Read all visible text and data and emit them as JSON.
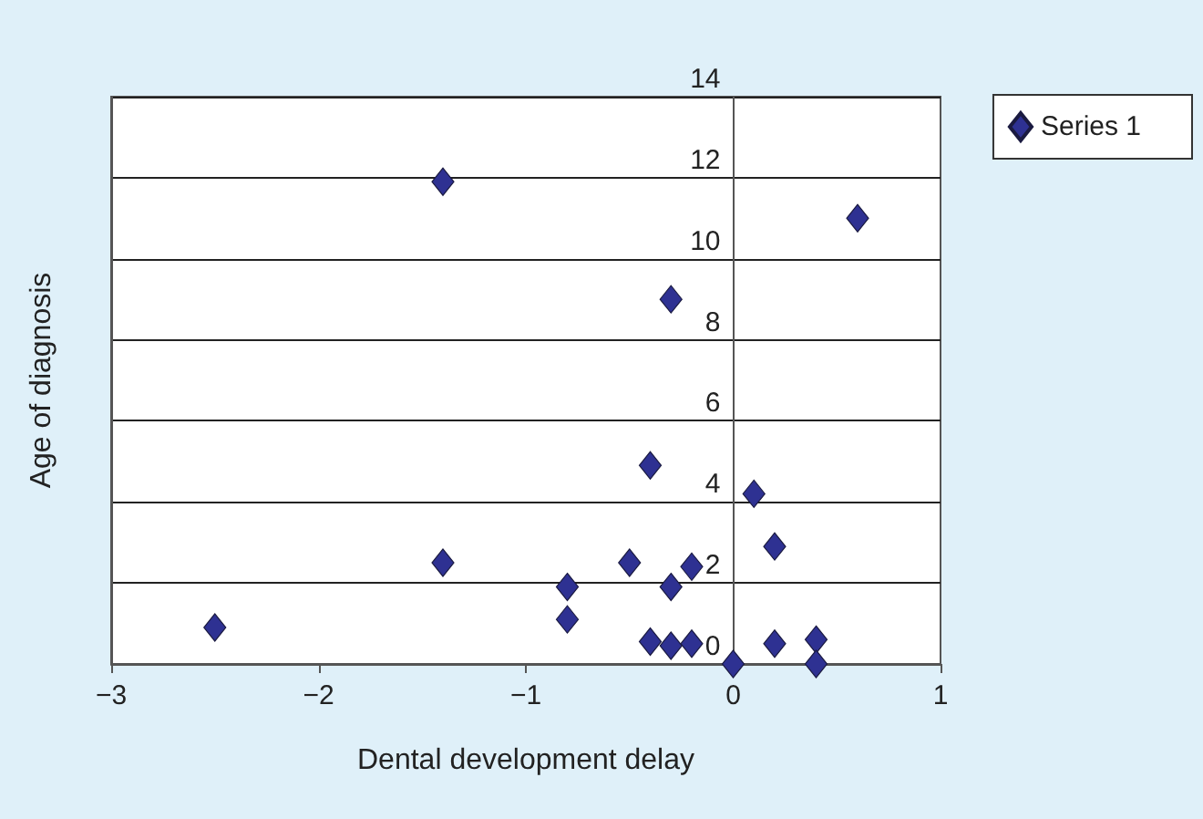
{
  "chart_data": {
    "type": "scatter",
    "xlabel": "Dental development delay",
    "ylabel": "Age of diagnosis",
    "series": [
      {
        "name": "Series 1",
        "color": "#2e3192",
        "x": [
          -2.5,
          -1.4,
          -1.4,
          -0.8,
          -0.8,
          -0.5,
          -0.4,
          -0.4,
          -0.3,
          -0.3,
          -0.3,
          -0.2,
          -0.2,
          0,
          0.1,
          0.2,
          0.2,
          0.4,
          0.4,
          0.6
        ],
        "values": [
          0.9,
          11.9,
          2.5,
          1.9,
          1.1,
          2.5,
          4.9,
          0.55,
          9,
          1.9,
          0.45,
          2.4,
          0.5,
          0,
          4.2,
          2.9,
          0.5,
          0.6,
          0,
          11
        ]
      }
    ],
    "xlim": [
      -3,
      1
    ],
    "xticks": [
      {
        "value": -3,
        "label": "−3"
      },
      {
        "value": -2,
        "label": "−2"
      },
      {
        "value": -1,
        "label": "−1"
      },
      0,
      1
    ],
    "ylim": [
      0,
      14
    ],
    "yticks": [
      0,
      2,
      4,
      6,
      8,
      10,
      12,
      14
    ],
    "grid": "y",
    "legend": "top right",
    "marker": "diamond"
  }
}
